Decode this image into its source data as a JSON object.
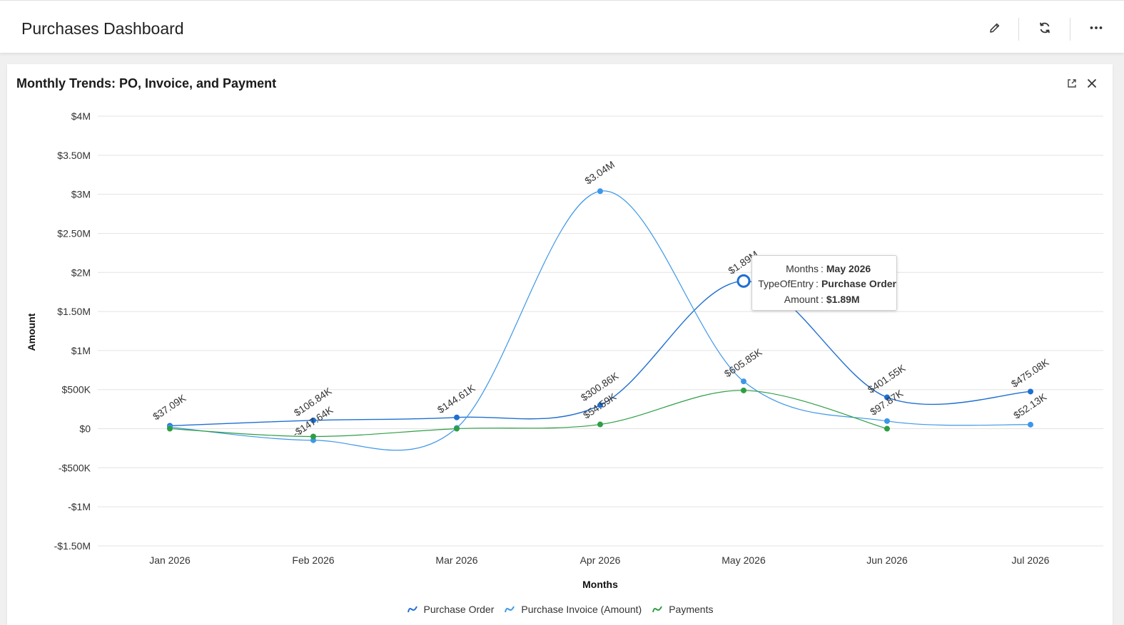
{
  "header": {
    "title": "Purchases Dashboard",
    "icons": [
      "pencil-icon",
      "refresh-icon",
      "more-dots-icon"
    ]
  },
  "card": {
    "title": "Monthly Trends: PO, Invoice, and Payment",
    "icons": [
      "export-icon",
      "close-icon"
    ]
  },
  "colors": {
    "purchase_order": "#1f6fd1",
    "purchase_invoice": "#3d97e8",
    "payments": "#2e9e44"
  },
  "tooltip": {
    "rows": [
      {
        "key": "Months",
        "value": "May 2026"
      },
      {
        "key": "TypeOfEntry",
        "value": "Purchase Order"
      },
      {
        "key": "Amount",
        "value": "$1.89M"
      }
    ]
  },
  "chart_data": {
    "type": "line",
    "title": "Monthly Trends: PO, Invoice, and Payment",
    "xlabel": "Months",
    "ylabel": "Amount",
    "ylim": [
      -1500000,
      4000000
    ],
    "y_ticks": [
      {
        "value": 4000000,
        "label": "$4M"
      },
      {
        "value": 3500000,
        "label": "$3.50M"
      },
      {
        "value": 3000000,
        "label": "$3M"
      },
      {
        "value": 2500000,
        "label": "$2.50M"
      },
      {
        "value": 2000000,
        "label": "$2M"
      },
      {
        "value": 1500000,
        "label": "$1.50M"
      },
      {
        "value": 1000000,
        "label": "$1M"
      },
      {
        "value": 500000,
        "label": "$500K"
      },
      {
        "value": 0,
        "label": "$0"
      },
      {
        "value": -500000,
        "label": "-$500K"
      },
      {
        "value": -1000000,
        "label": "-$1M"
      },
      {
        "value": -1500000,
        "label": "-$1.50M"
      }
    ],
    "categories": [
      "Jan 2026",
      "Feb 2026",
      "Mar 2026",
      "Apr 2026",
      "May 2026",
      "Jun 2026",
      "Jul 2026"
    ],
    "grid": true,
    "legend_position": "bottom-center",
    "series": [
      {
        "name": "Purchase Order",
        "values": [
          37090,
          106840,
          144610,
          300860,
          1890000,
          401550,
          475080
        ],
        "labels": [
          "$37.09K",
          "$106.84K",
          "$144.61K",
          "$300.86K",
          "$1.89M",
          "$401.55K",
          "$475.08K"
        ]
      },
      {
        "name": "Purchase Invoice (Amount)",
        "values": [
          20000,
          -147640,
          10000,
          3040000,
          605850,
          97870,
          52130
        ],
        "labels": [
          "",
          "-$147.64K",
          "",
          "$3.04M",
          "$605.85K",
          "$97.87K",
          "$52.13K"
        ]
      },
      {
        "name": "Payments",
        "values": [
          0,
          -100000,
          0,
          54590,
          490000,
          0,
          null
        ],
        "labels": [
          "",
          "",
          "",
          "$54.59K",
          "",
          "",
          ""
        ]
      }
    ],
    "highlight": {
      "series": "Purchase Order",
      "category": "May 2026"
    }
  }
}
